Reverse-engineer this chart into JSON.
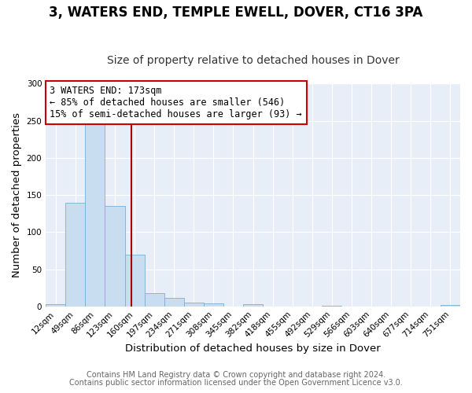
{
  "title": "3, WATERS END, TEMPLE EWELL, DOVER, CT16 3PA",
  "subtitle": "Size of property relative to detached houses in Dover",
  "xlabel": "Distribution of detached houses by size in Dover",
  "ylabel": "Number of detached properties",
  "footnote1": "Contains HM Land Registry data © Crown copyright and database right 2024.",
  "footnote2": "Contains public sector information licensed under the Open Government Licence v3.0.",
  "bin_labels": [
    "12sqm",
    "49sqm",
    "86sqm",
    "123sqm",
    "160sqm",
    "197sqm",
    "234sqm",
    "271sqm",
    "308sqm",
    "345sqm",
    "382sqm",
    "418sqm",
    "455sqm",
    "492sqm",
    "529sqm",
    "566sqm",
    "603sqm",
    "640sqm",
    "677sqm",
    "714sqm",
    "751sqm"
  ],
  "bar_values": [
    3,
    139,
    250,
    135,
    70,
    18,
    11,
    5,
    4,
    0,
    3,
    0,
    0,
    0,
    1,
    0,
    0,
    0,
    0,
    0,
    2
  ],
  "bar_color": "#c9ddf0",
  "bar_edge_color": "#7aafd4",
  "vline_color": "#aa0000",
  "annotation_text": "3 WATERS END: 173sqm\n← 85% of detached houses are smaller (546)\n15% of semi-detached houses are larger (93) →",
  "annotation_box_color": "#ffffff",
  "annotation_box_edge": "#cc0000",
  "ylim": [
    0,
    300
  ],
  "yticks": [
    0,
    50,
    100,
    150,
    200,
    250,
    300
  ],
  "bg_color": "#ffffff",
  "plot_bg_color": "#e8eef8",
  "grid_color": "#ffffff",
  "title_fontsize": 12,
  "subtitle_fontsize": 10,
  "axis_label_fontsize": 9.5,
  "tick_fontsize": 7.5,
  "footnote_fontsize": 7
}
